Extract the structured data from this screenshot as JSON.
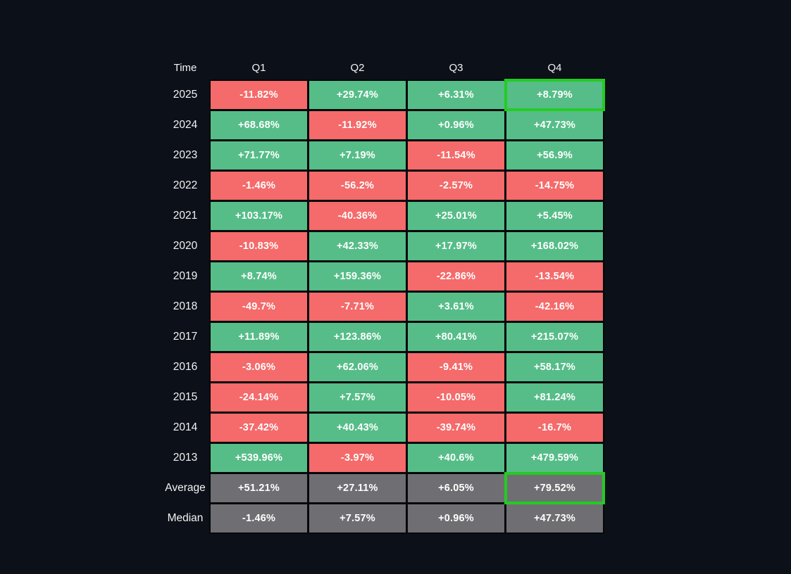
{
  "page": {
    "background": "#0C1018"
  },
  "colors": {
    "positive": "#56BD88",
    "negative": "#F56A6A",
    "summary": "#6F6F73",
    "highlight": "#24CB24",
    "cell_text": "#FFFFFF",
    "label_text": "#F2F3F5"
  },
  "table": {
    "corner_label": "Time",
    "column_headers": [
      "Q1",
      "Q2",
      "Q3",
      "Q4"
    ],
    "rows": [
      {
        "label": "2025",
        "type": "year",
        "values": [
          "-11.82%",
          "+29.74%",
          "+6.31%",
          "+8.79%"
        ]
      },
      {
        "label": "2024",
        "type": "year",
        "values": [
          "+68.68%",
          "-11.92%",
          "+0.96%",
          "+47.73%"
        ]
      },
      {
        "label": "2023",
        "type": "year",
        "values": [
          "+71.77%",
          "+7.19%",
          "-11.54%",
          "+56.9%"
        ]
      },
      {
        "label": "2022",
        "type": "year",
        "values": [
          "-1.46%",
          "-56.2%",
          "-2.57%",
          "-14.75%"
        ]
      },
      {
        "label": "2021",
        "type": "year",
        "values": [
          "+103.17%",
          "-40.36%",
          "+25.01%",
          "+5.45%"
        ]
      },
      {
        "label": "2020",
        "type": "year",
        "values": [
          "-10.83%",
          "+42.33%",
          "+17.97%",
          "+168.02%"
        ]
      },
      {
        "label": "2019",
        "type": "year",
        "values": [
          "+8.74%",
          "+159.36%",
          "-22.86%",
          "-13.54%"
        ]
      },
      {
        "label": "2018",
        "type": "year",
        "values": [
          "-49.7%",
          "-7.71%",
          "+3.61%",
          "-42.16%"
        ]
      },
      {
        "label": "2017",
        "type": "year",
        "values": [
          "+11.89%",
          "+123.86%",
          "+80.41%",
          "+215.07%"
        ]
      },
      {
        "label": "2016",
        "type": "year",
        "values": [
          "-3.06%",
          "+62.06%",
          "-9.41%",
          "+58.17%"
        ]
      },
      {
        "label": "2015",
        "type": "year",
        "values": [
          "-24.14%",
          "+7.57%",
          "-10.05%",
          "+81.24%"
        ]
      },
      {
        "label": "2014",
        "type": "year",
        "values": [
          "-37.42%",
          "+40.43%",
          "-39.74%",
          "-16.7%"
        ]
      },
      {
        "label": "2013",
        "type": "year",
        "values": [
          "+539.96%",
          "-3.97%",
          "+40.6%",
          "+479.59%"
        ]
      },
      {
        "label": "Average",
        "type": "summary",
        "values": [
          "+51.21%",
          "+27.11%",
          "+6.05%",
          "+79.52%"
        ]
      },
      {
        "label": "Median",
        "type": "summary",
        "values": [
          "-1.46%",
          "+7.57%",
          "+0.96%",
          "+47.73%"
        ]
      }
    ],
    "highlighted_cells": [
      {
        "row": "2025",
        "column": "Q4"
      },
      {
        "row": "Average",
        "column": "Q4"
      }
    ]
  },
  "chart_data": {
    "type": "heatmap",
    "x_categories": [
      "Q1",
      "Q2",
      "Q3",
      "Q4"
    ],
    "y_categories": [
      "2025",
      "2024",
      "2023",
      "2022",
      "2021",
      "2020",
      "2019",
      "2018",
      "2017",
      "2016",
      "2015",
      "2014",
      "2013",
      "Average",
      "Median"
    ],
    "values_percent": [
      [
        -11.82,
        29.74,
        6.31,
        8.79
      ],
      [
        68.68,
        -11.92,
        0.96,
        47.73
      ],
      [
        71.77,
        7.19,
        -11.54,
        56.9
      ],
      [
        -1.46,
        -56.2,
        -2.57,
        -14.75
      ],
      [
        103.17,
        -40.36,
        25.01,
        5.45
      ],
      [
        -10.83,
        42.33,
        17.97,
        168.02
      ],
      [
        8.74,
        159.36,
        -22.86,
        -13.54
      ],
      [
        -49.7,
        -7.71,
        3.61,
        -42.16
      ],
      [
        11.89,
        123.86,
        80.41,
        215.07
      ],
      [
        -3.06,
        62.06,
        -9.41,
        58.17
      ],
      [
        -24.14,
        7.57,
        -10.05,
        81.24
      ],
      [
        -37.42,
        40.43,
        -39.74,
        -16.7
      ],
      [
        539.96,
        -3.97,
        40.6,
        479.59
      ],
      [
        51.21,
        27.11,
        6.05,
        79.52
      ],
      [
        -1.46,
        7.57,
        0.96,
        47.73
      ]
    ],
    "color_encoding": {
      "positive_cells": "#56BD88",
      "negative_cells": "#F56A6A",
      "summary_row_cells": "#6F6F73",
      "highlight_border": "#24CB24"
    },
    "highlighted_cells": [
      [
        "2025",
        "Q4"
      ],
      [
        "Average",
        "Q4"
      ]
    ],
    "legend_position": "none",
    "grid": false
  }
}
